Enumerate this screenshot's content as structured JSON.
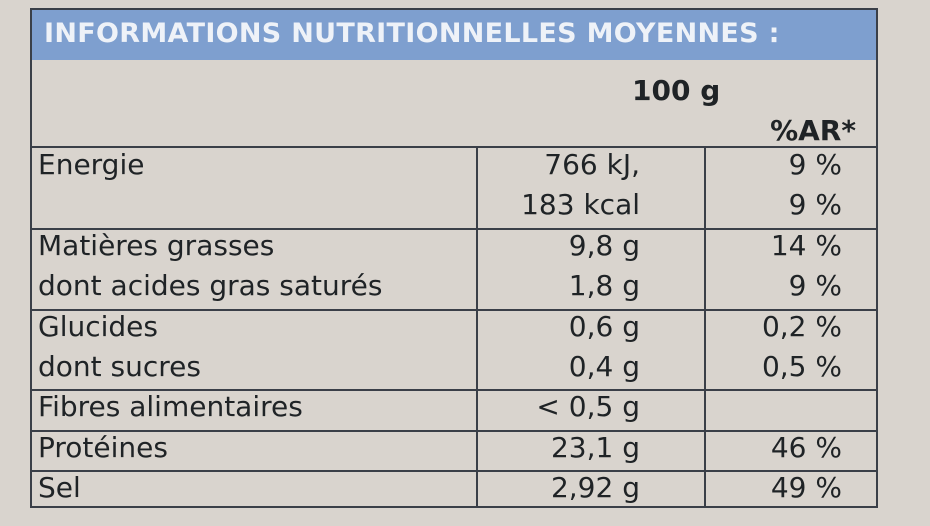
{
  "header": {
    "title": "INFORMATIONS NUTRITIONNELLES MOYENNES :"
  },
  "table": {
    "columns": {
      "amount": "100 g",
      "ar": "%AR*"
    },
    "rows": [
      {
        "label": "Energie",
        "amount": "766 kJ,",
        "ar": "9 %"
      },
      {
        "amount": "183 kcal",
        "ar": "9 %"
      },
      {
        "label": "Matières grasses",
        "amount": "9,8 g",
        "ar": "14 %"
      },
      {
        "label": "dont acides gras saturés",
        "amount": "1,8 g",
        "ar": "9 %"
      },
      {
        "label": "Glucides",
        "amount": "0,6 g",
        "ar": "0,2 %"
      },
      {
        "label": "dont sucres",
        "amount": "0,4 g",
        "ar": "0,5 %"
      },
      {
        "label": "Fibres alimentaires",
        "amount": "< 0,5 g"
      },
      {
        "label": "Protéines",
        "amount": "23,1 g",
        "ar": "46 %"
      },
      {
        "label": "Sel",
        "amount": "2,92 g",
        "ar": "49 %"
      }
    ]
  }
}
